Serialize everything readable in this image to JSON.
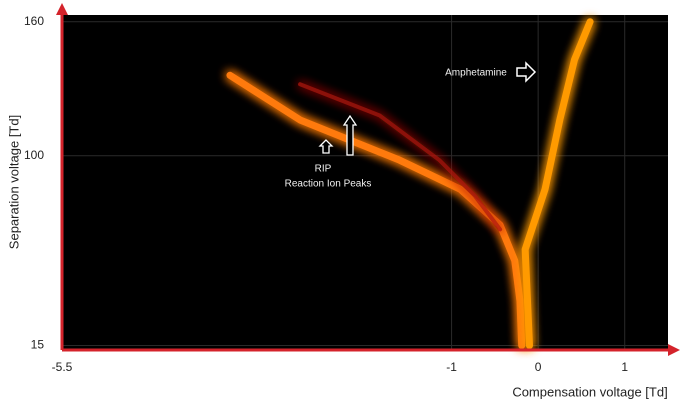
{
  "chart_data": {
    "type": "line",
    "x_label": "Compensation voltage [Td]",
    "y_label": "Separation voltage [Td]",
    "xlim": [
      -5.5,
      1.5
    ],
    "ylim": [
      13,
      163
    ],
    "xticks": [
      -5.5,
      -1,
      0,
      1
    ],
    "yticks": [
      15,
      100,
      160
    ],
    "annotations": [
      "Amphetamine",
      "RIP",
      "Reaction Ion Peaks"
    ],
    "series": [
      {
        "color": "#ff7a10",
        "x": [
          -3.56,
          -2.75,
          -1.6,
          -0.9,
          -0.44,
          -0.27,
          -0.21,
          -0.19
        ],
        "values": [
          136,
          116,
          98,
          85,
          69,
          53,
          35,
          15
        ]
      },
      {
        "color": "#b01208",
        "x": [
          -2.75,
          -1.83,
          -1.14,
          -0.73,
          -0.44
        ],
        "values": [
          132,
          118,
          98,
          82,
          67
        ]
      },
      {
        "color": "#ff9a00",
        "x": [
          -0.1,
          -0.15,
          0.08,
          0.25,
          0.42,
          0.6
        ],
        "values": [
          15,
          58,
          85,
          116,
          143,
          160
        ]
      }
    ]
  }
}
